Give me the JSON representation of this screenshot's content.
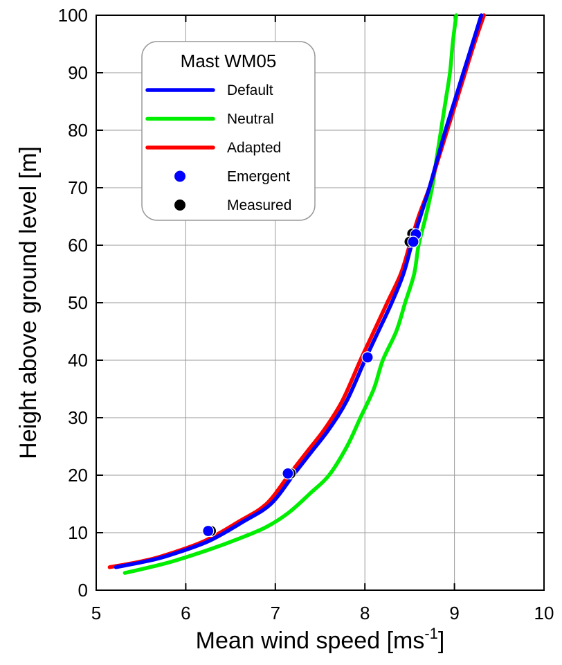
{
  "chart_data": {
    "type": "line",
    "title": "",
    "xlabel": {
      "main": "Mean wind speed [ms",
      "sup": "-1",
      "end": "]"
    },
    "ylabel": "Height above ground level [m]",
    "xlim": [
      5,
      10
    ],
    "ylim": [
      0,
      100
    ],
    "x_ticks": [
      "5",
      "6",
      "7",
      "8",
      "9",
      "10"
    ],
    "y_ticks": [
      "0",
      "10",
      "20",
      "30",
      "40",
      "50",
      "60",
      "70",
      "80",
      "90",
      "100"
    ],
    "grid": true,
    "legend": {
      "title": "Mast WM05",
      "placement": "top-left",
      "entries": [
        {
          "label": "Default",
          "kind": "line",
          "color": "#0000ff"
        },
        {
          "label": "Neutral",
          "kind": "line",
          "color": "#00ee00"
        },
        {
          "label": "Adapted",
          "kind": "line",
          "color": "#ff0000"
        },
        {
          "label": "Emergent",
          "kind": "marker",
          "color": "#0000ff"
        },
        {
          "label": "Measured",
          "kind": "marker",
          "color": "#000000"
        }
      ]
    },
    "series": [
      {
        "name": "Neutral",
        "kind": "line",
        "color": "#00ee00",
        "points": [
          [
            5.32,
            3
          ],
          [
            5.6,
            4
          ],
          [
            5.85,
            5
          ],
          [
            6.25,
            7
          ],
          [
            6.6,
            9
          ],
          [
            6.9,
            11
          ],
          [
            7.15,
            13.5
          ],
          [
            7.4,
            17
          ],
          [
            7.6,
            20
          ],
          [
            7.8,
            25
          ],
          [
            7.95,
            30
          ],
          [
            8.1,
            35
          ],
          [
            8.2,
            40
          ],
          [
            8.35,
            45
          ],
          [
            8.45,
            50
          ],
          [
            8.55,
            55
          ],
          [
            8.6,
            60
          ],
          [
            8.68,
            65
          ],
          [
            8.75,
            70
          ],
          [
            8.8,
            75
          ],
          [
            8.85,
            80
          ],
          [
            8.9,
            85
          ],
          [
            8.95,
            90
          ],
          [
            8.98,
            95
          ],
          [
            9.02,
            100
          ]
        ]
      },
      {
        "name": "Adapted",
        "kind": "line",
        "color": "#ff0000",
        "points": [
          [
            5.15,
            4
          ],
          [
            5.5,
            5
          ],
          [
            5.75,
            6
          ],
          [
            6.2,
            8.5
          ],
          [
            6.6,
            12
          ],
          [
            6.9,
            15
          ],
          [
            7.15,
            20
          ],
          [
            7.35,
            24
          ],
          [
            7.55,
            28
          ],
          [
            7.75,
            33
          ],
          [
            7.95,
            40
          ],
          [
            8.1,
            45
          ],
          [
            8.25,
            50
          ],
          [
            8.4,
            55
          ],
          [
            8.5,
            60
          ],
          [
            8.6,
            65
          ],
          [
            8.72,
            70
          ],
          [
            8.82,
            75
          ],
          [
            8.92,
            80
          ],
          [
            9.02,
            85
          ],
          [
            9.12,
            90
          ],
          [
            9.22,
            95
          ],
          [
            9.33,
            100
          ]
        ]
      },
      {
        "name": "Default",
        "kind": "line",
        "color": "#0000ff",
        "points": [
          [
            5.22,
            4
          ],
          [
            5.55,
            5
          ],
          [
            5.8,
            6
          ],
          [
            6.25,
            8.5
          ],
          [
            6.65,
            12
          ],
          [
            6.95,
            15
          ],
          [
            7.2,
            20
          ],
          [
            7.4,
            24
          ],
          [
            7.6,
            28
          ],
          [
            7.8,
            33
          ],
          [
            8.0,
            40
          ],
          [
            8.15,
            45
          ],
          [
            8.3,
            50
          ],
          [
            8.43,
            55
          ],
          [
            8.52,
            60
          ],
          [
            8.62,
            65
          ],
          [
            8.72,
            70
          ],
          [
            8.81,
            75
          ],
          [
            8.9,
            80
          ],
          [
            9.0,
            85
          ],
          [
            9.1,
            90
          ],
          [
            9.2,
            95
          ],
          [
            9.3,
            100
          ]
        ]
      },
      {
        "name": "Measured",
        "kind": "marker",
        "color": "#000000",
        "points": [
          [
            6.28,
            10.3
          ],
          [
            7.17,
            20.3
          ],
          [
            8.03,
            40.5
          ],
          [
            8.53,
            62.0
          ],
          [
            8.5,
            60.6
          ]
        ]
      },
      {
        "name": "Emergent",
        "kind": "marker",
        "color": "#0000ff",
        "points": [
          [
            6.25,
            10.3
          ],
          [
            7.14,
            20.3
          ],
          [
            8.03,
            40.5
          ],
          [
            8.57,
            61.9
          ],
          [
            8.54,
            60.6
          ]
        ]
      }
    ]
  }
}
